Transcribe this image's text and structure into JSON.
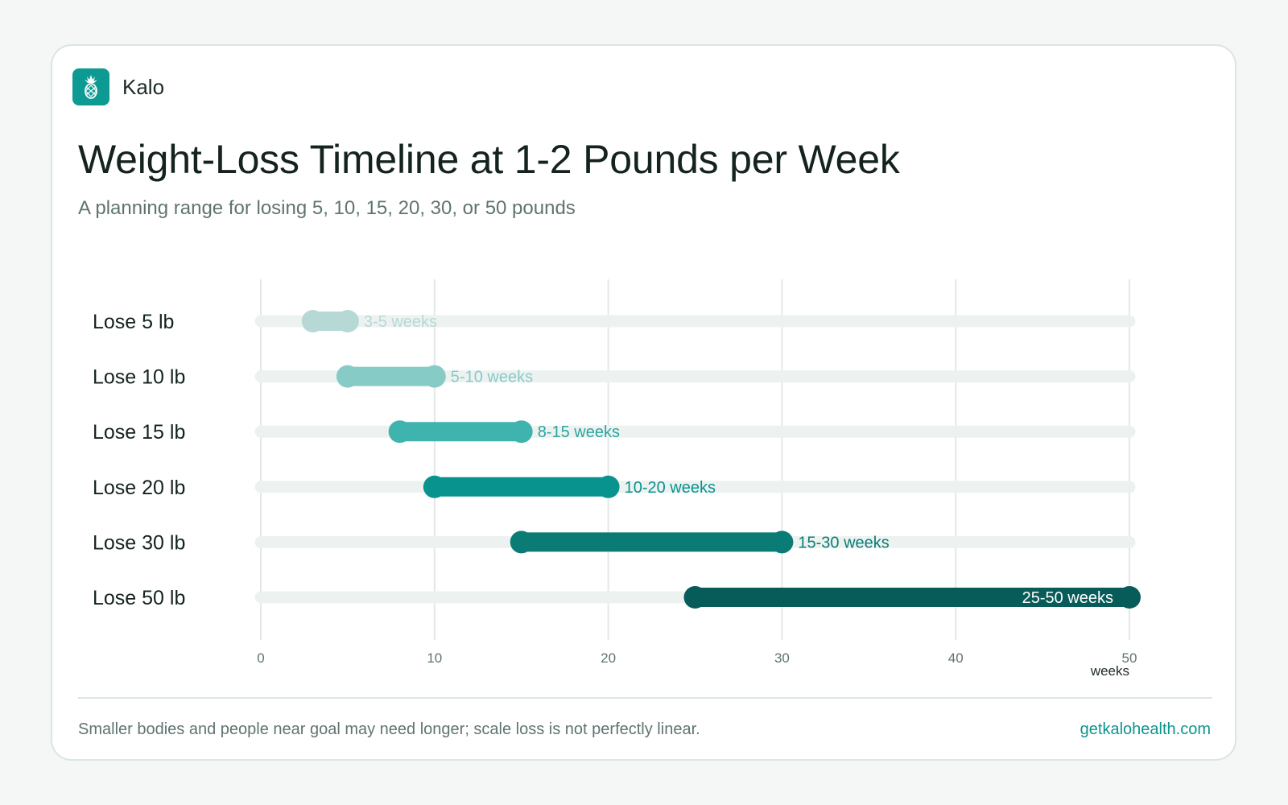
{
  "brand": {
    "name": "Kalo",
    "logo_icon": "pineapple-icon"
  },
  "header": {
    "title": "Weight-Loss Timeline at 1-2 Pounds per Week",
    "subtitle": "A planning range for losing 5, 10, 15, 20, 30, or 50 pounds"
  },
  "footer": {
    "note": "Smaller bodies and people near goal may need longer; scale loss is not perfectly linear.",
    "website": "getkalohealth.com"
  },
  "chart_data": {
    "type": "bar",
    "subtype": "range",
    "orientation": "horizontal",
    "xlabel": "weeks",
    "xlim": [
      0,
      50
    ],
    "xticks": [
      0,
      10,
      20,
      30,
      40,
      50
    ],
    "grid": true,
    "rows": [
      {
        "label": "Lose 5 lb",
        "min": 3,
        "max": 5,
        "range_label": "3-5 weeks",
        "color": "#b6d9d6",
        "label_color": "#b6d9d6"
      },
      {
        "label": "Lose 10 lb",
        "min": 5,
        "max": 10,
        "range_label": "5-10 weeks",
        "color": "#86cbc6",
        "label_color": "#86cbc6"
      },
      {
        "label": "Lose 15 lb",
        "min": 8,
        "max": 15,
        "range_label": "8-15 weeks",
        "color": "#3fb3ad",
        "label_color": "#2aa69f"
      },
      {
        "label": "Lose 20 lb",
        "min": 10,
        "max": 20,
        "range_label": "10-20 weeks",
        "color": "#09938f",
        "label_color": "#09938f"
      },
      {
        "label": "Lose 30 lb",
        "min": 15,
        "max": 30,
        "range_label": "15-30 weeks",
        "color": "#0b7c75",
        "label_color": "#0b7c75"
      },
      {
        "label": "Lose 50 lb",
        "min": 25,
        "max": 50,
        "range_label": "25-50 weeks",
        "color": "#075c59",
        "label_color": "#ffffff"
      }
    ],
    "track_color": "#edf2f1",
    "grid_color": "#e3e8e7"
  }
}
